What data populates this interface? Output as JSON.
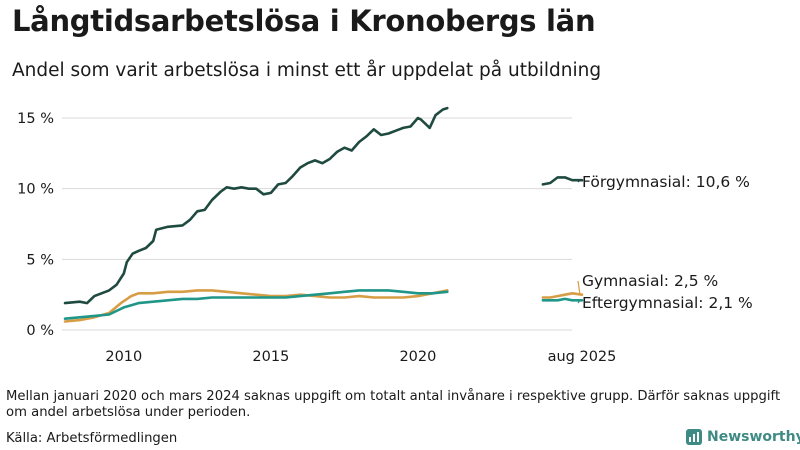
{
  "header": {
    "title": "Långtidsarbetslösa i Kronobergs län",
    "subtitle": "Andel som varit arbetslösa i minst ett år uppdelat på utbildning"
  },
  "footer": {
    "note": "Mellan januari 2020 och mars 2024 saknas uppgift om totalt antal invånare i respektive grupp. Därför saknas uppgift om andel arbetslösa under perioden.",
    "source": "Källa: Arbetsförmedlingen",
    "brand": "Newsworthy"
  },
  "colors": {
    "forgymnasial": "#1f4a40",
    "gymnasial": "#d69d45",
    "eftergymnasial": "#1f9688",
    "grid": "#d9d9d9",
    "brand": "#3e8a84"
  },
  "chart_data": {
    "type": "line",
    "y_ticks": [
      "0 %",
      "5 %",
      "10 %",
      "15 %"
    ],
    "y_tick_values": [
      0,
      5,
      10,
      15
    ],
    "ylim": [
      0,
      16
    ],
    "x_ticks": [
      "2010",
      "2015",
      "2020",
      "aug 2025"
    ],
    "x_tick_values": [
      2010,
      2015,
      2020,
      2025.58
    ],
    "labels": {
      "forgymnasial": "Förgymnasial: 10,6 %",
      "gymnasial": "Gymnasial:  2,5 %",
      "eftergymnasial": "Eftergymnasial:  2,1 %"
    },
    "series": [
      {
        "key": "forgymnasial",
        "name": "Förgymnasial",
        "segments": [
          [
            [
              2008.0,
              1.9
            ],
            [
              2008.5,
              2.0
            ],
            [
              2008.75,
              1.9
            ],
            [
              2009.0,
              2.4
            ],
            [
              2009.5,
              2.8
            ],
            [
              2009.75,
              3.2
            ],
            [
              2010.0,
              4.0
            ],
            [
              2010.1,
              4.8
            ],
            [
              2010.3,
              5.4
            ],
            [
              2010.5,
              5.6
            ],
            [
              2010.75,
              5.8
            ],
            [
              2011.0,
              6.3
            ],
            [
              2011.1,
              7.1
            ],
            [
              2011.5,
              7.3
            ],
            [
              2012.0,
              7.4
            ],
            [
              2012.25,
              7.8
            ],
            [
              2012.5,
              8.4
            ],
            [
              2012.75,
              8.5
            ],
            [
              2013.0,
              9.2
            ],
            [
              2013.3,
              9.8
            ],
            [
              2013.5,
              10.1
            ],
            [
              2013.75,
              10.0
            ],
            [
              2014.0,
              10.1
            ],
            [
              2014.25,
              10.0
            ],
            [
              2014.5,
              10.0
            ],
            [
              2014.75,
              9.6
            ],
            [
              2015.0,
              9.7
            ],
            [
              2015.25,
              10.3
            ],
            [
              2015.5,
              10.4
            ],
            [
              2015.75,
              10.9
            ],
            [
              2016.0,
              11.5
            ],
            [
              2016.25,
              11.8
            ],
            [
              2016.5,
              12.0
            ],
            [
              2016.75,
              11.8
            ],
            [
              2017.0,
              12.1
            ],
            [
              2017.25,
              12.6
            ],
            [
              2017.5,
              12.9
            ],
            [
              2017.75,
              12.7
            ],
            [
              2018.0,
              13.3
            ],
            [
              2018.25,
              13.7
            ],
            [
              2018.5,
              14.2
            ],
            [
              2018.75,
              13.8
            ],
            [
              2019.0,
              13.9
            ],
            [
              2019.25,
              14.1
            ],
            [
              2019.5,
              14.3
            ],
            [
              2019.75,
              14.4
            ],
            [
              2020.0,
              15.0
            ],
            [
              2020.1,
              14.9
            ],
            [
              2020.25,
              14.6
            ],
            [
              2020.4,
              14.3
            ],
            [
              2020.6,
              15.2
            ],
            [
              2020.85,
              15.6
            ],
            [
              2021.0,
              15.7
            ]
          ],
          [
            [
              2024.25,
              10.3
            ],
            [
              2024.5,
              10.4
            ],
            [
              2024.75,
              10.8
            ],
            [
              2025.0,
              10.8
            ],
            [
              2025.25,
              10.6
            ],
            [
              2025.58,
              10.6
            ]
          ]
        ]
      },
      {
        "key": "gymnasial",
        "name": "Gymnasial",
        "segments": [
          [
            [
              2008.0,
              0.6
            ],
            [
              2008.5,
              0.7
            ],
            [
              2009.0,
              0.9
            ],
            [
              2009.5,
              1.2
            ],
            [
              2009.9,
              1.9
            ],
            [
              2010.25,
              2.4
            ],
            [
              2010.5,
              2.6
            ],
            [
              2011.0,
              2.6
            ],
            [
              2011.5,
              2.7
            ],
            [
              2012.0,
              2.7
            ],
            [
              2012.5,
              2.8
            ],
            [
              2013.0,
              2.8
            ],
            [
              2013.5,
              2.7
            ],
            [
              2014.0,
              2.6
            ],
            [
              2014.5,
              2.5
            ],
            [
              2015.0,
              2.4
            ],
            [
              2015.5,
              2.4
            ],
            [
              2016.0,
              2.5
            ],
            [
              2016.5,
              2.4
            ],
            [
              2017.0,
              2.3
            ],
            [
              2017.5,
              2.3
            ],
            [
              2018.0,
              2.4
            ],
            [
              2018.5,
              2.3
            ],
            [
              2019.0,
              2.3
            ],
            [
              2019.5,
              2.3
            ],
            [
              2020.0,
              2.4
            ],
            [
              2020.5,
              2.6
            ],
            [
              2021.0,
              2.8
            ]
          ],
          [
            [
              2024.25,
              2.3
            ],
            [
              2024.5,
              2.3
            ],
            [
              2024.75,
              2.4
            ],
            [
              2025.0,
              2.5
            ],
            [
              2025.25,
              2.6
            ],
            [
              2025.58,
              2.5
            ]
          ]
        ]
      },
      {
        "key": "eftergymnasial",
        "name": "Eftergymnasial",
        "segments": [
          [
            [
              2008.0,
              0.8
            ],
            [
              2008.5,
              0.9
            ],
            [
              2009.0,
              1.0
            ],
            [
              2009.5,
              1.1
            ],
            [
              2010.0,
              1.6
            ],
            [
              2010.5,
              1.9
            ],
            [
              2011.0,
              2.0
            ],
            [
              2011.5,
              2.1
            ],
            [
              2012.0,
              2.2
            ],
            [
              2012.5,
              2.2
            ],
            [
              2013.0,
              2.3
            ],
            [
              2013.5,
              2.3
            ],
            [
              2014.0,
              2.3
            ],
            [
              2014.5,
              2.3
            ],
            [
              2015.0,
              2.3
            ],
            [
              2015.5,
              2.3
            ],
            [
              2016.0,
              2.4
            ],
            [
              2016.5,
              2.5
            ],
            [
              2017.0,
              2.6
            ],
            [
              2017.5,
              2.7
            ],
            [
              2018.0,
              2.8
            ],
            [
              2018.5,
              2.8
            ],
            [
              2019.0,
              2.8
            ],
            [
              2019.5,
              2.7
            ],
            [
              2020.0,
              2.6
            ],
            [
              2020.5,
              2.6
            ],
            [
              2021.0,
              2.7
            ]
          ],
          [
            [
              2024.25,
              2.1
            ],
            [
              2024.5,
              2.1
            ],
            [
              2024.75,
              2.1
            ],
            [
              2025.0,
              2.2
            ],
            [
              2025.25,
              2.1
            ],
            [
              2025.58,
              2.1
            ]
          ]
        ]
      }
    ]
  }
}
